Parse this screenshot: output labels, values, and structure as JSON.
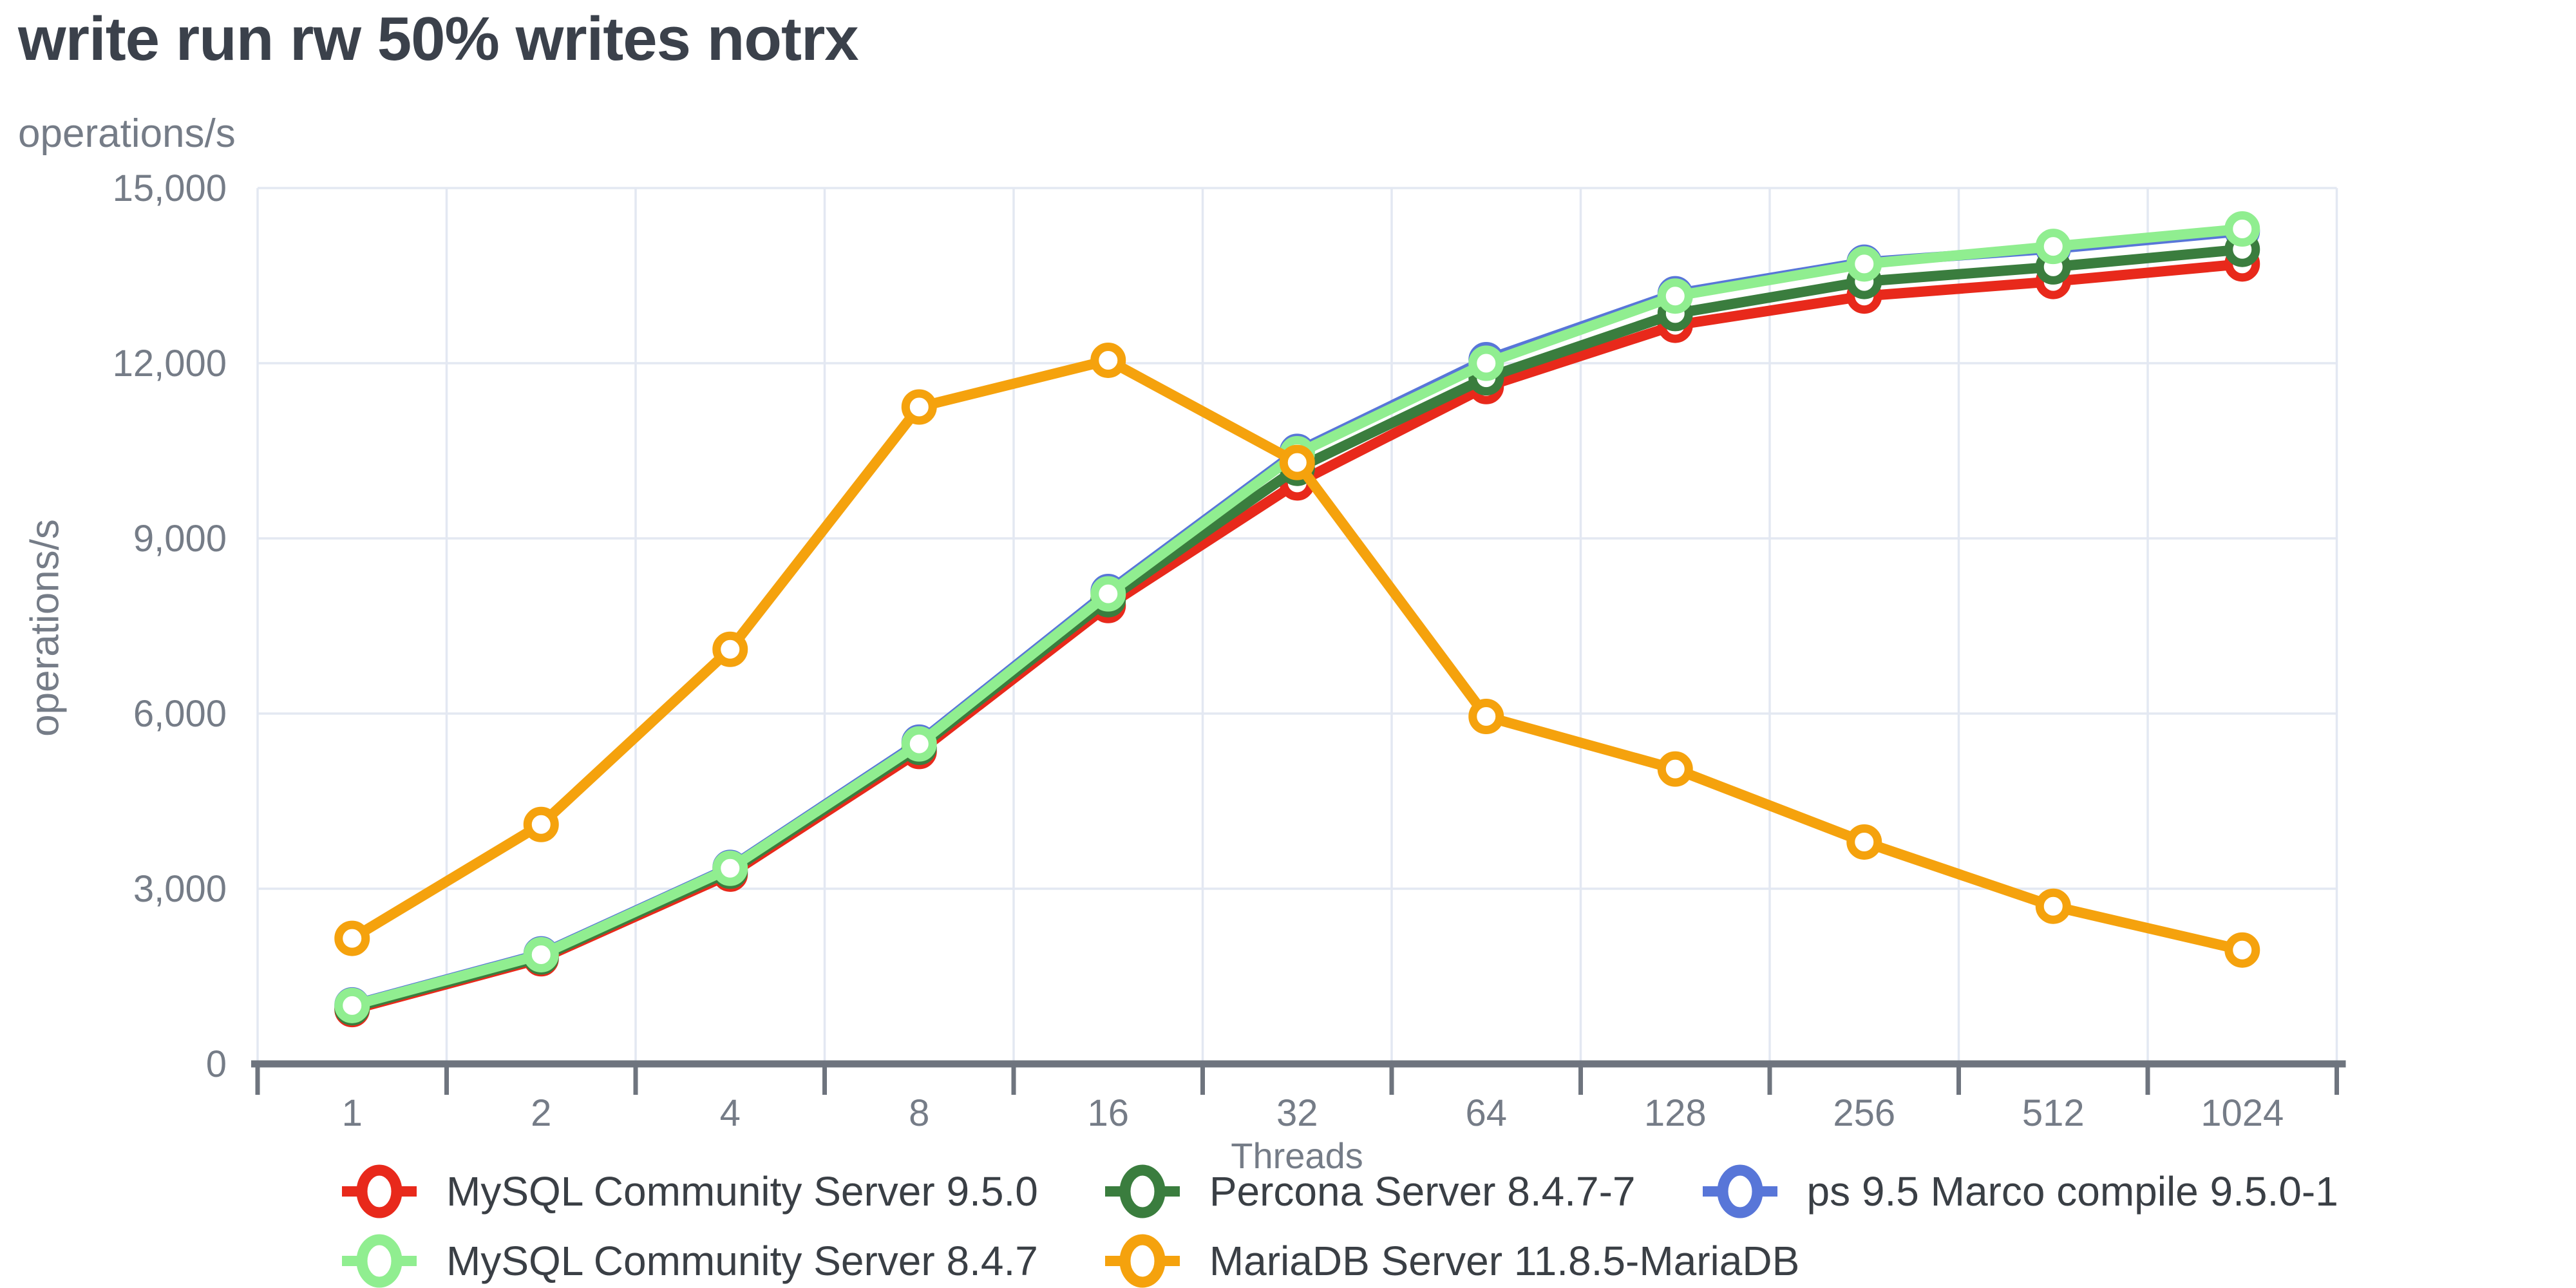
{
  "chart_data": {
    "type": "line",
    "title": "write run rw 50% writes notrx",
    "xlabel": "Threads",
    "ylabel": "operations/s",
    "x_scale": "categorical-log2",
    "categories": [
      "1",
      "2",
      "4",
      "8",
      "16",
      "32",
      "64",
      "128",
      "256",
      "512",
      "1024"
    ],
    "ylim": [
      0,
      15000
    ],
    "y_ticks": [
      {
        "value": 0,
        "label": "0"
      },
      {
        "value": 3000,
        "label": "3,000"
      },
      {
        "value": 6000,
        "label": "6,000"
      },
      {
        "value": 9000,
        "label": "9,000"
      },
      {
        "value": 12000,
        "label": "12,000"
      },
      {
        "value": 15000,
        "label": "15,000"
      }
    ],
    "grid": true,
    "legend_position": "bottom",
    "marker_style": "open-circle",
    "series": [
      {
        "name": "MySQL Community Server 9.5.0",
        "color": "#e8291b",
        "values": [
          930,
          1800,
          3250,
          5350,
          7850,
          9950,
          11600,
          12650,
          13150,
          13400,
          13700
        ]
      },
      {
        "name": "Percona Server 8.4.7-7",
        "color": "#3a7d3e",
        "values": [
          960,
          1830,
          3300,
          5420,
          7950,
          10200,
          11750,
          12850,
          13400,
          13650,
          13950
        ]
      },
      {
        "name": "ps 9.5 Marco compile 9.5.0-1",
        "color": "#5876d8",
        "values": [
          1010,
          1885,
          3365,
          5510,
          8090,
          10490,
          12060,
          13190,
          13730,
          13960,
          14260
        ]
      },
      {
        "name": "MySQL Community Server 8.4.7",
        "color": "#90ee90",
        "values": [
          1000,
          1870,
          3350,
          5480,
          8050,
          10450,
          12000,
          13150,
          13700,
          14000,
          14300
        ]
      },
      {
        "name": "MariaDB Server 11.8.5-MariaDB",
        "color": "#f5a20d",
        "values": [
          2150,
          4100,
          7100,
          11250,
          12050,
          10300,
          5950,
          5050,
          3800,
          2700,
          1950
        ]
      }
    ],
    "draw_order": [
      2,
      0,
      1,
      3,
      4
    ],
    "legend_rows": [
      [
        0,
        1,
        2
      ],
      [
        3,
        4
      ]
    ],
    "colors": {
      "gridline": "#e3e8f2",
      "axis": "#6e747e",
      "tick_label": "#757c87",
      "axis_label": "#757c87",
      "title": "#3b414b",
      "legend_text": "#3a3f45",
      "background": "#ffffff"
    }
  }
}
